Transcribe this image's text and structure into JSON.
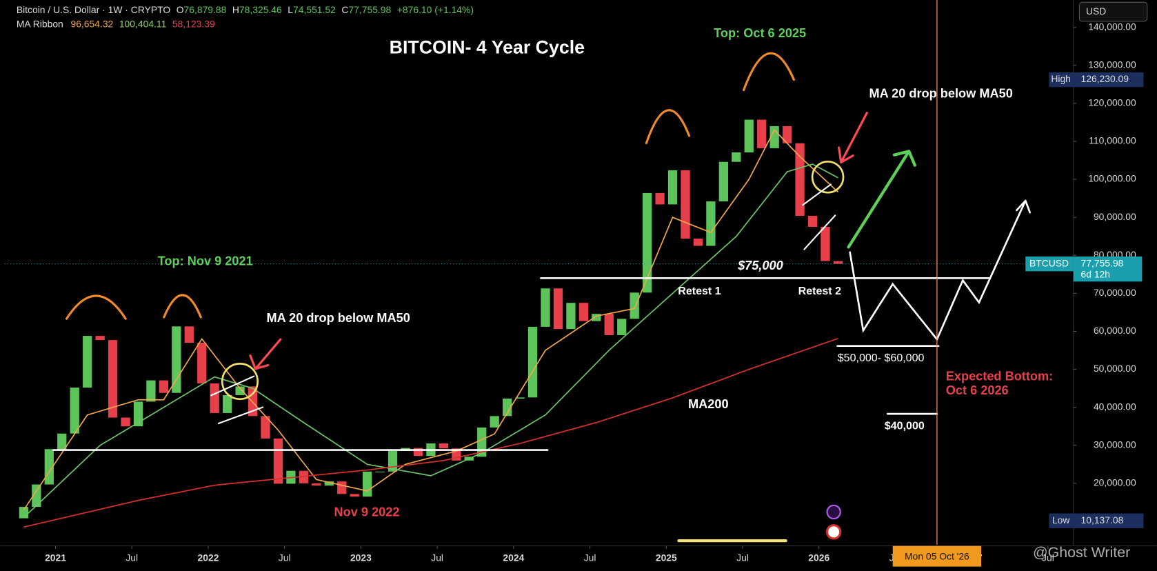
{
  "header": {
    "symbol": "Bitcoin / U.S. Dollar · 1W · CRYPTO",
    "ohlc": [
      {
        "label": "O",
        "value": "76,879.88"
      },
      {
        "label": "H",
        "value": "78,325.46"
      },
      {
        "label": "L",
        "value": "74,551.52"
      },
      {
        "label": "C",
        "value": "77,755.98"
      }
    ],
    "change": "+876.10 (+1.14%)",
    "indicator": "MA Ribbon",
    "indicator_values": [
      "96,654.32",
      "100,404.11",
      "58,123.39"
    ]
  },
  "chart_data": {
    "type": "candlestick",
    "currency": "USD",
    "up_color": "#5cc45a",
    "down_color": "#e8404a",
    "x": [
      "2020-10",
      "2020-11",
      "2020-12",
      "2021-01",
      "2021-02",
      "2021-03",
      "2021-04",
      "2021-05",
      "2021-06",
      "2021-07",
      "2021-08",
      "2021-09",
      "2021-10",
      "2021-11",
      "2021-12",
      "2022-01",
      "2022-02",
      "2022-03",
      "2022-04",
      "2022-05",
      "2022-06",
      "2022-07",
      "2022-08",
      "2022-09",
      "2022-10",
      "2022-11",
      "2022-12",
      "2023-01",
      "2023-02",
      "2023-03",
      "2023-04",
      "2023-05",
      "2023-06",
      "2023-07",
      "2023-08",
      "2023-09",
      "2023-10",
      "2023-11",
      "2023-12",
      "2024-01",
      "2024-02",
      "2024-03",
      "2024-04",
      "2024-05",
      "2024-06",
      "2024-07",
      "2024-08",
      "2024-09",
      "2024-10",
      "2024-11",
      "2024-12",
      "2025-01",
      "2025-02",
      "2025-03",
      "2025-04",
      "2025-05",
      "2025-06",
      "2025-07",
      "2025-08",
      "2025-09",
      "2025-10",
      "2025-11",
      "2025-12",
      "2026-01",
      "2026-02"
    ],
    "open": [
      10800,
      13800,
      19700,
      29000,
      33100,
      45200,
      58800,
      57700,
      37300,
      35000,
      41500,
      47100,
      43800,
      61300,
      57000,
      46300,
      38500,
      43200,
      45500,
      37700,
      31800,
      19900,
      23300,
      20000,
      19400,
      20500,
      17200,
      16500,
      23100,
      23100,
      28500,
      29300,
      27200,
      30500,
      29200,
      26000,
      27000,
      34700,
      37700,
      42300,
      42600,
      61200,
      71300,
      60600,
      67500,
      62700,
      64600,
      59000,
      63300,
      70200,
      96400,
      93400,
      102400,
      84400,
      82500,
      94200,
      104600,
      107100,
      115700,
      108200,
      114000,
      109500,
      90400,
      87500,
      78500
    ],
    "close": [
      13800,
      19700,
      29000,
      33100,
      45200,
      58800,
      57700,
      37300,
      35000,
      41500,
      47100,
      43800,
      61300,
      57000,
      46300,
      38500,
      43200,
      45500,
      37700,
      31800,
      19900,
      23300,
      20000,
      19400,
      20500,
      17200,
      16500,
      23100,
      23100,
      28500,
      29300,
      27200,
      30500,
      29200,
      26000,
      27000,
      34700,
      37700,
      42300,
      42600,
      61200,
      71300,
      60600,
      67500,
      62700,
      64600,
      59000,
      63300,
      70200,
      96400,
      93400,
      102400,
      84400,
      82500,
      94200,
      104600,
      107100,
      115700,
      108200,
      114000,
      109500,
      90400,
      87500,
      78500,
      77755.98
    ],
    "lines": [
      {
        "color": "#f0a64a",
        "x": [
          "2020-10",
          "2021-03",
          "2021-07",
          "2021-09",
          "2021-12",
          "2022-03",
          "2022-06",
          "2022-09",
          "2023-01",
          "2023-04",
          "2023-08",
          "2023-11",
          "2024-03",
          "2024-07",
          "2024-10",
          "2025-01",
          "2025-04",
          "2025-07",
          "2025-09",
          "2025-11",
          "2026-02"
        ],
        "values": [
          13000,
          38000,
          42000,
          42000,
          58000,
          45000,
          34000,
          21000,
          18000,
          25000,
          28500,
          33000,
          55000,
          64000,
          66000,
          90000,
          86000,
          100000,
          113000,
          106000,
          96654.32
        ]
      },
      {
        "color": "#6cc46a",
        "x": [
          "2020-10",
          "2021-04",
          "2021-08",
          "2022-01",
          "2022-04",
          "2022-08",
          "2023-01",
          "2023-06",
          "2023-10",
          "2024-03",
          "2024-08",
          "2025-01",
          "2025-06",
          "2025-10",
          "2025-12",
          "2026-02"
        ],
        "values": [
          11000,
          30000,
          38000,
          48000,
          45000,
          36000,
          25000,
          22000,
          28000,
          38000,
          55000,
          70000,
          85000,
          102000,
          104000,
          100404.11
        ]
      },
      {
        "color": "#d8302c",
        "x": [
          "2020-10",
          "2021-07",
          "2022-01",
          "2022-07",
          "2023-01",
          "2023-07",
          "2024-01",
          "2024-07",
          "2025-01",
          "2025-07",
          "2026-02"
        ],
        "values": [
          8500,
          15500,
          19500,
          21500,
          23500,
          26000,
          30500,
          36000,
          42500,
          50000,
          58123.39
        ]
      }
    ],
    "xlim": [
      "2020-09",
      "2027-09"
    ],
    "xticks": [
      {
        "value": "2021-01",
        "label": "2021"
      },
      {
        "value": "2021-07",
        "label": "Jul"
      },
      {
        "value": "2022-01",
        "label": "2022"
      },
      {
        "value": "2022-07",
        "label": "Jul"
      },
      {
        "value": "2023-01",
        "label": "2023"
      },
      {
        "value": "2023-07",
        "label": "Jul"
      },
      {
        "value": "2024-01",
        "label": "2024"
      },
      {
        "value": "2024-07",
        "label": "Jul"
      },
      {
        "value": "2025-01",
        "label": "2025"
      },
      {
        "value": "2025-07",
        "label": "Jul"
      },
      {
        "value": "2026-01",
        "label": "2026"
      },
      {
        "value": "2026-07",
        "label": "Jul"
      },
      {
        "value": "2027-01",
        "label": "2027"
      },
      {
        "value": "2027-07",
        "label": "Jul"
      }
    ],
    "ylim": [
      4500,
      147200
    ],
    "yticks": [
      {
        "value": 20000,
        "label": "20,000.00"
      },
      {
        "value": 30000,
        "label": "30,000.00"
      },
      {
        "value": 40000,
        "label": "40,000.00"
      },
      {
        "value": 50000,
        "label": "50,000.00"
      },
      {
        "value": 60000,
        "label": "60,000.00"
      },
      {
        "value": 70000,
        "label": "70,000.00"
      },
      {
        "value": 80000,
        "label": "80,000.00"
      },
      {
        "value": 90000,
        "label": "90,000.00"
      },
      {
        "value": 100000,
        "label": "100,000.00"
      },
      {
        "value": 110000,
        "label": "110,000.00"
      },
      {
        "value": 120000,
        "label": "120,000.00"
      },
      {
        "value": 130000,
        "label": "130,000.00"
      },
      {
        "value": 140000,
        "label": "140,000.00"
      }
    ],
    "grid": false,
    "last_price": {
      "value": 77755.98,
      "label": "77,755.98"
    },
    "symbol_label": "BTCUSD",
    "countdown": "6d 12h",
    "high": {
      "value": 126230.09,
      "label": "126,230.09"
    },
    "high_label": "High",
    "low": {
      "value": 10137.08,
      "label": "10,137.08"
    },
    "low_label": "Low"
  },
  "annotations": {
    "title": "BITCOIN- 4 Year Cycle",
    "top_2025": "Top: Oct 6 2025",
    "top_2021": "Top: Nov 9 2021",
    "ma_cross_2022": "MA 20 drop below MA50",
    "ma_cross_2025": "MA 20 drop below MA50",
    "bottom_2022": "Nov 9 2022",
    "support": "$75,000",
    "retest_1": "Retest 1",
    "retest_2": "Retest 2",
    "target_range": "$50,000- $60,000",
    "expected_bottom": "Expected Bottom:",
    "expected_date": "Oct 6 2026",
    "ma200": "MA200",
    "target_low": "$40,000"
  },
  "footer": {
    "crosshair_date": "Mon 05 Oct '26",
    "watermark": "@Ghost Writer"
  }
}
